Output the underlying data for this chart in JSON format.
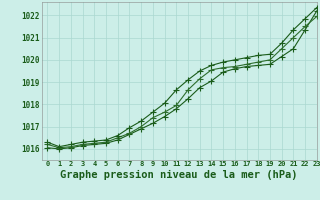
{
  "background_color": "#cceee8",
  "grid_color": "#aad8d0",
  "line_color1": "#1a5c1a",
  "line_color2": "#2d6e2d",
  "line_color3": "#1a5c1a",
  "title": "Graphe pression niveau de la mer (hPa)",
  "title_fontsize": 7.5,
  "xlim": [
    -0.5,
    23
  ],
  "ylim": [
    1015.5,
    1022.6
  ],
  "yticks": [
    1016,
    1017,
    1018,
    1019,
    1020,
    1021,
    1022
  ],
  "xticks": [
    0,
    1,
    2,
    3,
    4,
    5,
    6,
    7,
    8,
    9,
    10,
    11,
    12,
    13,
    14,
    15,
    16,
    17,
    18,
    19,
    20,
    21,
    22,
    23
  ],
  "series1": [
    1016.05,
    1016.0,
    1016.05,
    1016.15,
    1016.2,
    1016.25,
    1016.4,
    1016.65,
    1016.9,
    1017.15,
    1017.45,
    1017.8,
    1018.25,
    1018.75,
    1019.05,
    1019.45,
    1019.6,
    1019.7,
    1019.75,
    1019.8,
    1020.15,
    1020.5,
    1021.35,
    1022.2
  ],
  "series2": [
    1016.2,
    1016.05,
    1016.1,
    1016.2,
    1016.25,
    1016.3,
    1016.5,
    1016.7,
    1017.0,
    1017.4,
    1017.65,
    1017.95,
    1018.65,
    1019.15,
    1019.55,
    1019.65,
    1019.7,
    1019.8,
    1019.9,
    1020.0,
    1020.5,
    1021.0,
    1021.5,
    1021.95
  ],
  "series3": [
    1016.3,
    1016.1,
    1016.2,
    1016.3,
    1016.35,
    1016.4,
    1016.6,
    1016.95,
    1017.25,
    1017.65,
    1018.05,
    1018.65,
    1019.1,
    1019.5,
    1019.75,
    1019.9,
    1020.0,
    1020.1,
    1020.2,
    1020.25,
    1020.75,
    1021.35,
    1021.85,
    1022.35
  ],
  "marker": "+",
  "markersize": 4.0,
  "linewidth": 0.8
}
